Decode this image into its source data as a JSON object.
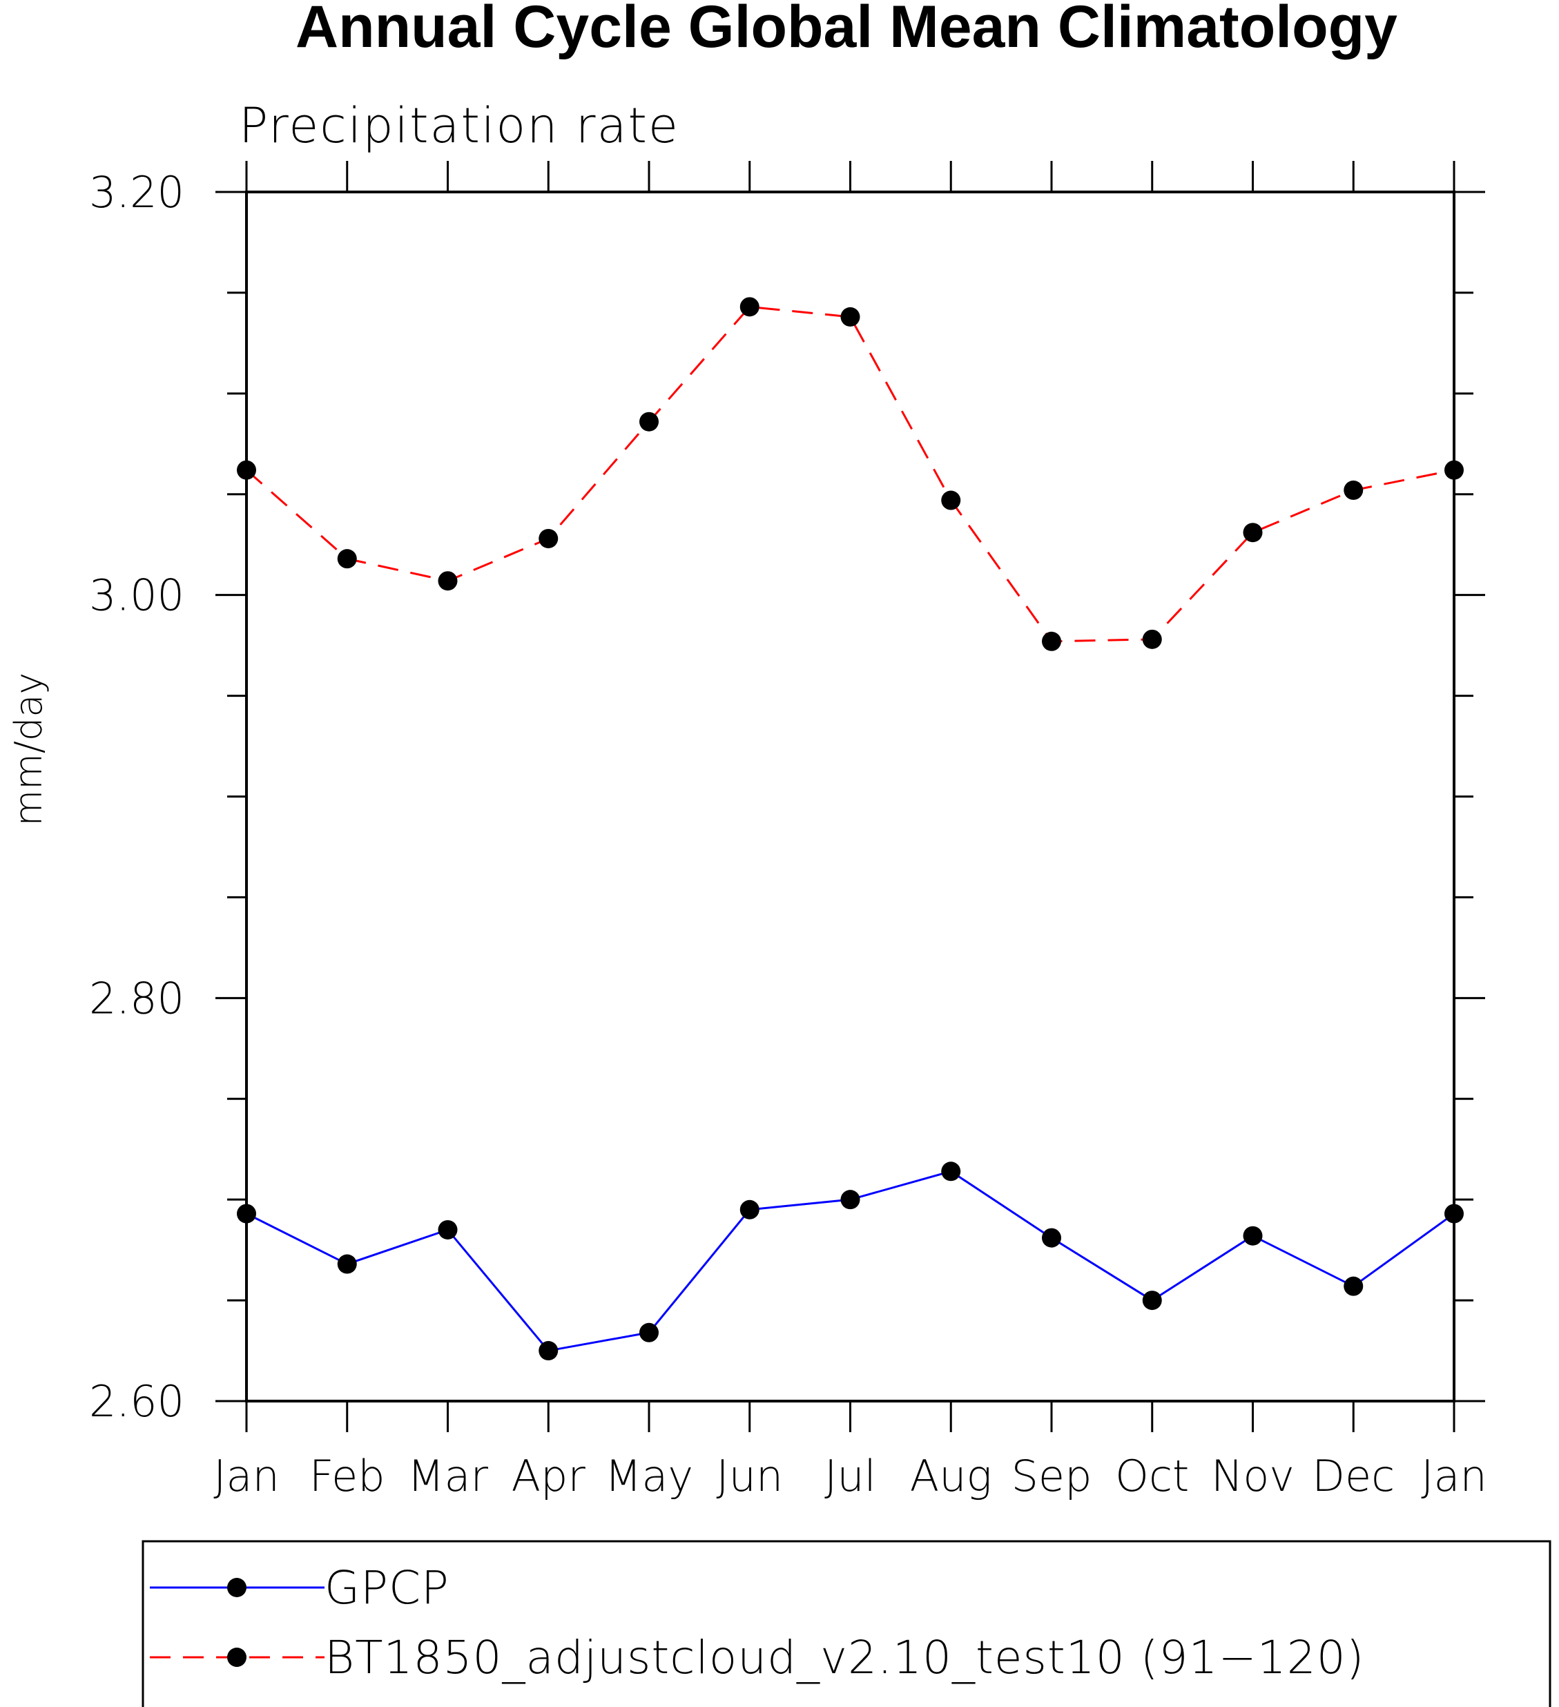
{
  "chart_data": {
    "type": "line",
    "title": "Annual Cycle Global Mean Climatology",
    "subtitle": "Precipitation rate",
    "xlabel": "",
    "ylabel": "mm/day",
    "categories": [
      "Jan",
      "Feb",
      "Mar",
      "Apr",
      "May",
      "Jun",
      "Jul",
      "Aug",
      "Sep",
      "Oct",
      "Nov",
      "Dec",
      "Jan"
    ],
    "ylim": [
      2.6,
      3.2
    ],
    "yticks": [
      "2.60",
      "2.80",
      "3.00",
      "3.20"
    ],
    "ytick_values": [
      2.6,
      2.8,
      3.0,
      3.2
    ],
    "grid": false,
    "legend_position": "bottom",
    "series": [
      {
        "name": "GPCP",
        "color": "#0000ff",
        "style": "solid",
        "values": [
          2.693,
          2.668,
          2.685,
          2.625,
          2.634,
          2.695,
          2.7,
          2.714,
          2.681,
          2.65,
          2.682,
          2.657,
          2.693
        ]
      },
      {
        "name": "BT1850_adjustcloud_v2.10_test10 (91-120)",
        "color": "#ff0000",
        "style": "dashed",
        "values": [
          3.062,
          3.018,
          3.007,
          3.028,
          3.086,
          3.143,
          3.138,
          3.047,
          2.977,
          2.978,
          3.031,
          3.052,
          3.062
        ]
      }
    ]
  },
  "legend": {
    "items": [
      "GPCP",
      "BT1850_adjustcloud_v2.10_test10 (91−120)"
    ]
  }
}
